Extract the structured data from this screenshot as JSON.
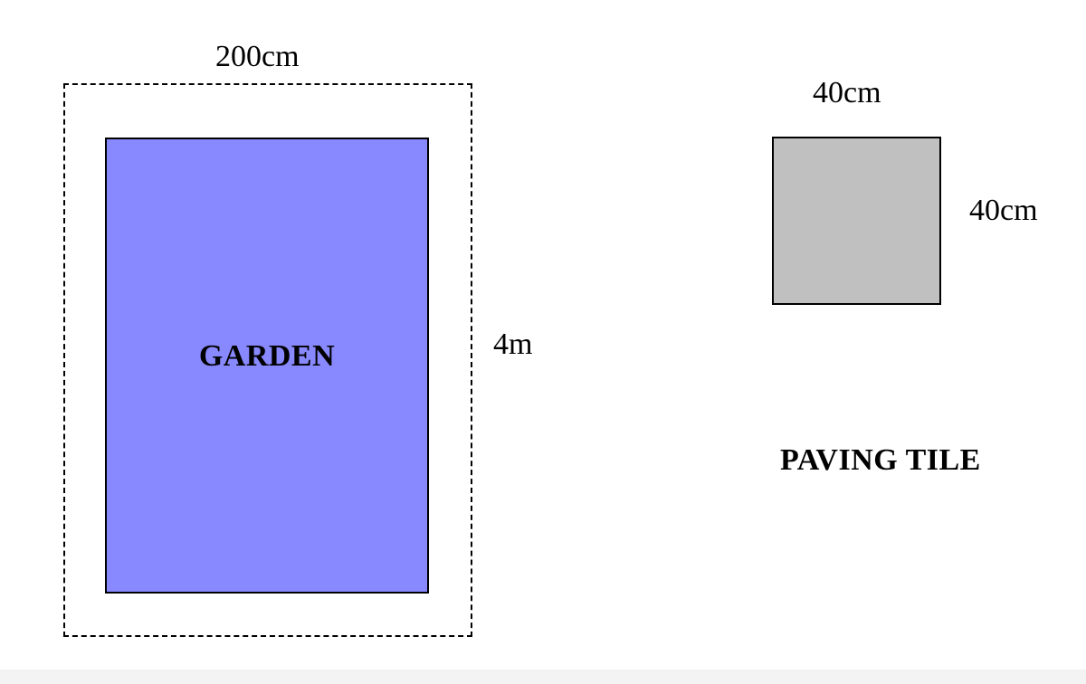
{
  "garden": {
    "label": "GARDEN",
    "width_label": "200cm",
    "height_label": "4m",
    "fill_color": "#8888ff",
    "border_style": "dashed"
  },
  "tile": {
    "label": "PAVING TILE",
    "width_label": "40cm",
    "height_label": "40cm",
    "fill_color": "#c0c0c0"
  }
}
